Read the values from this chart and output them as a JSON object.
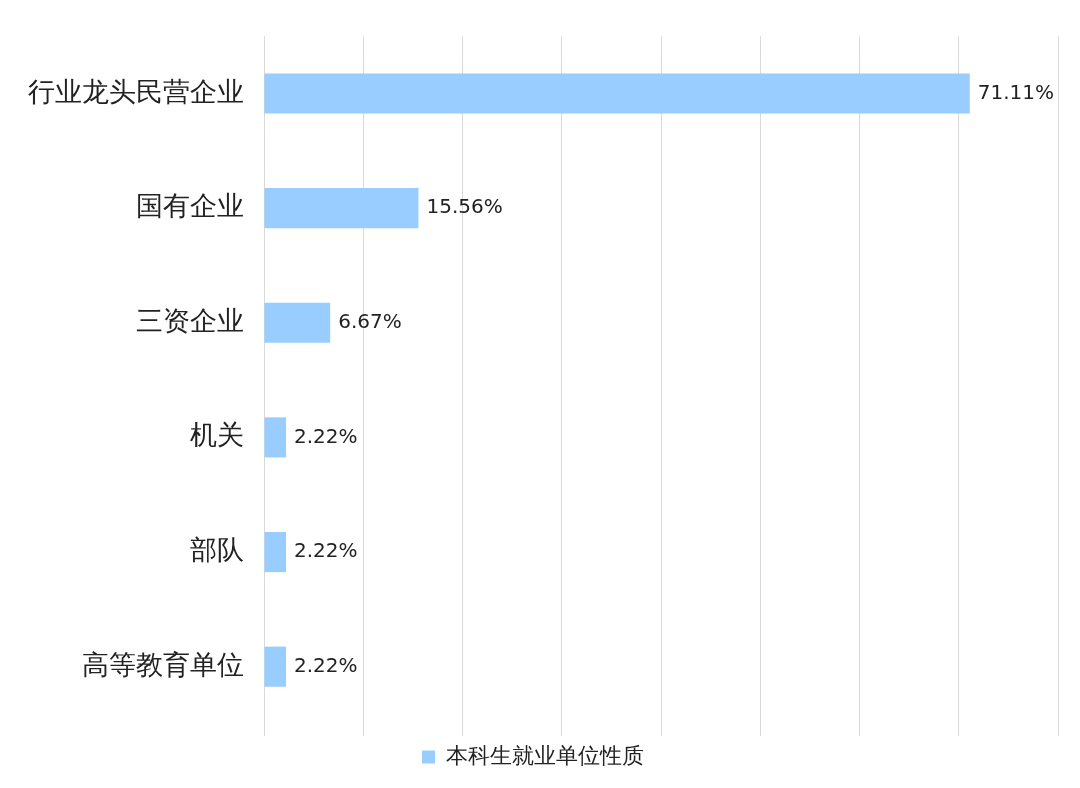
{
  "chart_data": {
    "type": "bar",
    "orientation": "horizontal",
    "categories": [
      "行业龙头民营企业",
      "国有企业",
      "三资企业",
      "机关",
      "部队",
      "高等教育单位"
    ],
    "series": [
      {
        "name": "本科生就业单位性质",
        "color": "#99ccff",
        "values": [
          71.11,
          15.56,
          6.67,
          2.22,
          2.22,
          2.22
        ],
        "value_labels": [
          "71.11%",
          "15.56%",
          "6.67%",
          "2.22%",
          "2.22%",
          "2.22%"
        ]
      }
    ],
    "xlim": [
      0,
      80
    ],
    "xticks": [
      {
        "value": 0,
        "label": null
      },
      {
        "value": 10,
        "label": null
      },
      {
        "value": 20,
        "label": null
      },
      {
        "value": 30,
        "label": null
      },
      {
        "value": 40,
        "label": null
      },
      {
        "value": 50,
        "label": null
      },
      {
        "value": 60,
        "label": null
      },
      {
        "value": 70,
        "label": null
      },
      {
        "value": 80,
        "label": null
      }
    ],
    "grid": "x",
    "legend": "bottom",
    "tick_labels": "y"
  }
}
